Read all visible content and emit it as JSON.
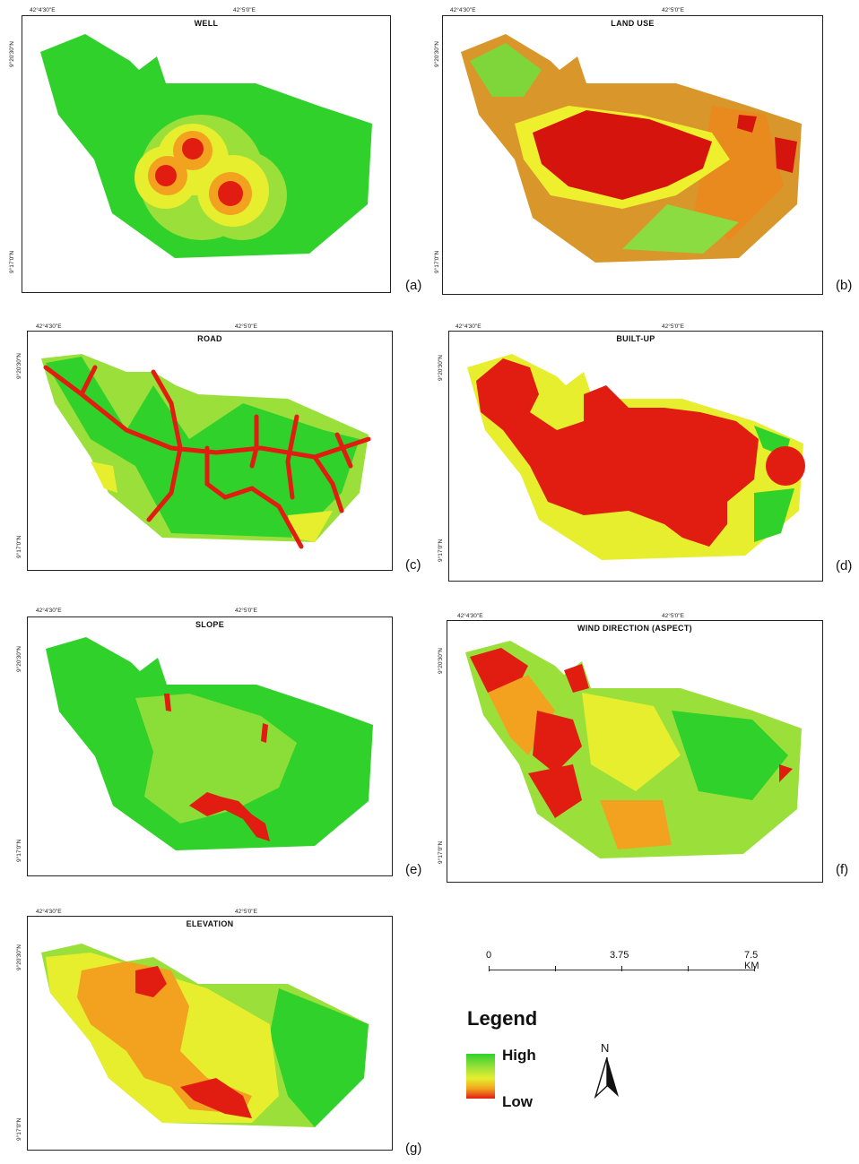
{
  "colors": {
    "high": "#2fd12a",
    "mid_high": "#9be03a",
    "mid": "#e6ee2e",
    "mid_low": "#f2a21e",
    "low": "#e11d12"
  },
  "panels": [
    {
      "id": "well",
      "title": "WELL",
      "label": "(a)",
      "lon_left": "42°4'30\"E",
      "lon_right": "42°5'0\"E",
      "lat_top": "9°20'30\"N",
      "lat_bottom": "9°17'0\"N"
    },
    {
      "id": "landuse",
      "title": "LAND USE",
      "label": "(b)",
      "lon_left": "42°4'30\"E",
      "lon_right": "42°5'0\"E",
      "lat_top": "9°20'30\"N",
      "lat_bottom": "9°17'0\"N"
    },
    {
      "id": "road",
      "title": "ROAD",
      "label": "(c)",
      "lon_left": "42°4'30\"E",
      "lon_right": "42°5'0\"E",
      "lat_top": "9°20'30\"N",
      "lat_bottom": "9°17'0\"N"
    },
    {
      "id": "builtup",
      "title": "BUILT-UP",
      "label": "(d)",
      "lon_left": "42°4'30\"E",
      "lon_right": "42°5'0\"E",
      "lat_top": "9°20'30\"N",
      "lat_bottom": "9°17'0\"N"
    },
    {
      "id": "slope",
      "title": "SLOPE",
      "label": "(e)",
      "lon_left": "42°4'30\"E",
      "lon_right": "42°5'0\"E",
      "lat_top": "9°20'30\"N",
      "lat_bottom": "9°17'0\"N"
    },
    {
      "id": "wind",
      "title": "WIND DIRECTION (ASPECT)",
      "label": "(f)",
      "lon_left": "42°4'30\"E",
      "lon_right": "42°5'0\"E",
      "lat_top": "9°20'30\"N",
      "lat_bottom": "9°17'0\"N"
    },
    {
      "id": "elevation",
      "title": "ELEVATION",
      "label": "(g)",
      "lon_left": "42°4'30\"E",
      "lon_right": "42°5'0\"E",
      "lat_top": "9°20'30\"N",
      "lat_bottom": "9°17'0\"N"
    }
  ],
  "scale_bar": {
    "zero": "0",
    "mid": "3.75",
    "end": "7.5 KM"
  },
  "legend": {
    "title": "Legend",
    "high": "High",
    "low": "Low"
  },
  "north_arrow": {
    "label": "N"
  }
}
